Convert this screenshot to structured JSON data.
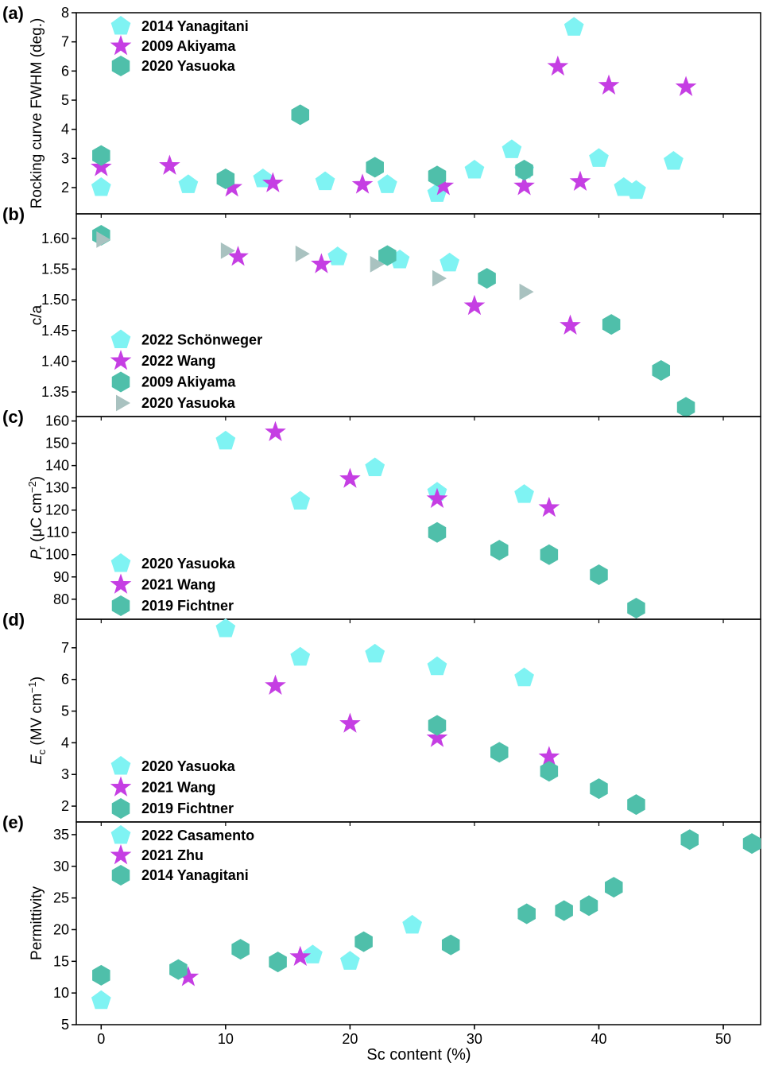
{
  "colors": {
    "pentagon": "#7ff3f3",
    "star": "#c53ee3",
    "hexagon": "#4fbfaa",
    "triangle": "#a9c2c0",
    "axis": "#000000"
  },
  "icons": {
    "pentagon": "pentagon-marker-icon",
    "star": "star-marker-icon",
    "hexagon": "hexagon-marker-icon",
    "triangle": "triangle-marker-icon"
  },
  "xaxis": {
    "label": "Sc content (%)",
    "lim": [
      -2,
      53
    ],
    "ticks": [
      "0",
      "10",
      "20",
      "30",
      "40",
      "50"
    ]
  },
  "chart_data": [
    {
      "type": "scatter",
      "panel": "(a)",
      "ylabel": "Rocking curve FWHM (deg.)",
      "ylim": [
        1.1,
        8
      ],
      "yticks": [
        "2",
        "3",
        "4",
        "5",
        "6",
        "7",
        "8"
      ],
      "legend_position": "top-left",
      "series": [
        {
          "name": "2014 Yanagitani",
          "marker": "pentagon",
          "x": [
            0,
            7,
            13,
            18,
            23,
            27,
            30,
            33,
            34,
            38,
            40,
            42,
            43,
            46
          ],
          "y": [
            2.0,
            2.1,
            2.3,
            2.2,
            2.1,
            1.8,
            2.6,
            3.3,
            2.6,
            7.5,
            3.0,
            2.0,
            1.9,
            2.9
          ]
        },
        {
          "name": "2009 Akiyama",
          "marker": "star",
          "x": [
            0,
            5.5,
            10.5,
            13.8,
            21,
            27.5,
            34,
            36.7,
            38.5,
            40.8,
            47
          ],
          "y": [
            2.7,
            2.75,
            2.0,
            2.15,
            2.1,
            2.05,
            2.05,
            6.15,
            2.2,
            5.5,
            5.45
          ]
        },
        {
          "name": "2020 Yasuoka",
          "marker": "hexagon",
          "x": [
            0,
            10,
            16,
            22,
            27,
            34
          ],
          "y": [
            3.1,
            2.3,
            4.5,
            2.7,
            2.4,
            2.6
          ]
        }
      ]
    },
    {
      "type": "scatter",
      "panel": "(b)",
      "ylabel": "c/a",
      "ylim": [
        1.31,
        1.64
      ],
      "yticks": [
        "1.35",
        "1.40",
        "1.45",
        "1.50",
        "1.55",
        "1.60"
      ],
      "legend_position": "bottom-left",
      "series": [
        {
          "name": "2022 Schönweger",
          "marker": "pentagon",
          "x": [
            19,
            24,
            28
          ],
          "y": [
            1.57,
            1.565,
            1.56
          ]
        },
        {
          "name": "2022 Wang",
          "marker": "star",
          "x": [
            11,
            17.7,
            30,
            37.7
          ],
          "y": [
            1.57,
            1.558,
            1.49,
            1.458
          ]
        },
        {
          "name": "2009 Akiyama",
          "marker": "hexagon",
          "x": [
            0,
            23,
            31,
            41,
            45,
            47
          ],
          "y": [
            1.605,
            1.572,
            1.535,
            1.46,
            1.385,
            1.325
          ]
        },
        {
          "name": "2020 Yasuoka",
          "marker": "triangle",
          "x": [
            0,
            10,
            16,
            22,
            27,
            34
          ],
          "y": [
            1.598,
            1.58,
            1.575,
            1.558,
            1.535,
            1.513
          ]
        }
      ]
    },
    {
      "type": "scatter",
      "panel": "(c)",
      "ylabel_main": "P",
      "ylabel_sub": "r",
      "ylabel_rest": " (μC cm",
      "ylabel_sup": "−2",
      "ylabel_end": ")",
      "ylim": [
        71,
        162
      ],
      "yticks": [
        "80",
        "90",
        "100",
        "110",
        "120",
        "130",
        "140",
        "150",
        "160"
      ],
      "legend_position": "bottom-left",
      "series": [
        {
          "name": "2020 Yasuoka",
          "marker": "pentagon",
          "x": [
            10,
            16,
            22,
            27,
            34
          ],
          "y": [
            151,
            124,
            139,
            128,
            127
          ]
        },
        {
          "name": "2021 Wang",
          "marker": "star",
          "x": [
            14,
            20,
            27,
            36
          ],
          "y": [
            155,
            134,
            125,
            121
          ]
        },
        {
          "name": "2019 Fichtner",
          "marker": "hexagon",
          "x": [
            27,
            32,
            36,
            40,
            43
          ],
          "y": [
            110,
            102,
            100,
            91,
            76
          ]
        }
      ]
    },
    {
      "type": "scatter",
      "panel": "(d)",
      "ylabel_main": "E",
      "ylabel_sub": "c",
      "ylabel_rest": " (MV cm",
      "ylabel_sup": "−1",
      "ylabel_end": ")",
      "ylim": [
        1.5,
        7.9
      ],
      "yticks": [
        "2",
        "3",
        "4",
        "5",
        "6",
        "7"
      ],
      "legend_position": "bottom-left",
      "series": [
        {
          "name": "2020 Yasuoka",
          "marker": "pentagon",
          "x": [
            10,
            16,
            22,
            27,
            34
          ],
          "y": [
            7.6,
            6.7,
            6.8,
            6.4,
            6.05
          ]
        },
        {
          "name": "2021 Wang",
          "marker": "star",
          "x": [
            14,
            20,
            27,
            36
          ],
          "y": [
            5.8,
            4.6,
            4.15,
            3.55
          ]
        },
        {
          "name": "2019 Fichtner",
          "marker": "hexagon",
          "x": [
            27,
            32,
            36,
            40,
            43
          ],
          "y": [
            4.55,
            3.7,
            3.1,
            2.55,
            2.05
          ]
        }
      ]
    },
    {
      "type": "scatter",
      "panel": "(e)",
      "ylabel": "Permittivity",
      "ylim": [
        5,
        37
      ],
      "yticks": [
        "5",
        "10",
        "15",
        "20",
        "25",
        "30",
        "35"
      ],
      "legend_position": "top-left",
      "series": [
        {
          "name": "2022 Casamento",
          "marker": "pentagon",
          "x": [
            0,
            17,
            20,
            25
          ],
          "y": [
            8.8,
            16,
            15,
            20.7
          ]
        },
        {
          "name": "2021 Zhu",
          "marker": "star",
          "x": [
            7,
            16
          ],
          "y": [
            12.5,
            15.7
          ]
        },
        {
          "name": "2014 Yanagitani",
          "marker": "hexagon",
          "x": [
            0,
            6.2,
            11.2,
            14.2,
            21.1,
            28.1,
            34.2,
            37.2,
            39.2,
            41.2,
            47.3,
            52.3
          ],
          "y": [
            12.8,
            13.7,
            16.9,
            14.9,
            18.1,
            17.6,
            22.5,
            23.0,
            23.8,
            26.7,
            34.2,
            33.6
          ]
        }
      ]
    }
  ]
}
